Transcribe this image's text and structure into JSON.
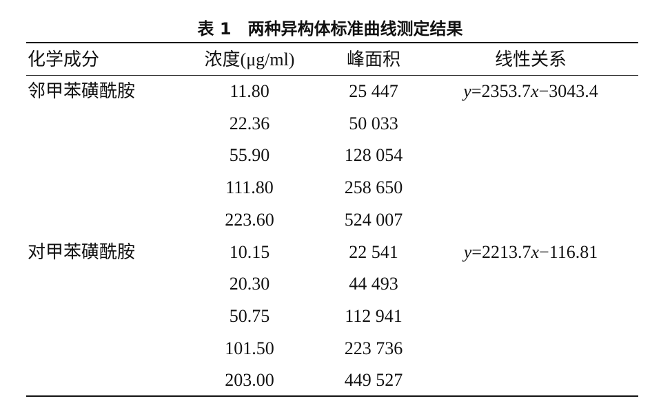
{
  "table": {
    "title": "表 1　两种异构体标准曲线测定结果",
    "header": [
      "化学成分",
      "浓度(μg/ml)",
      "峰面积",
      "线性关系"
    ],
    "groups": [
      {
        "name": "邻甲苯磺酰胺",
        "equation": "y=2353.7x−3043.4",
        "rows": [
          [
            "11.80",
            "25 447"
          ],
          [
            "22.36",
            "50 033"
          ],
          [
            "55.90",
            "128 054"
          ],
          [
            "111.80",
            "258 650"
          ],
          [
            "223.60",
            "524 007"
          ]
        ]
      },
      {
        "name": "对甲苯磺酰胺",
        "equation": "y=2213.7x−116.81",
        "rows": [
          [
            "10.15",
            "22 541"
          ],
          [
            "20.30",
            "44 493"
          ],
          [
            "50.75",
            "112 941"
          ],
          [
            "101.50",
            "223 736"
          ],
          [
            "203.00",
            "449 527"
          ]
        ]
      }
    ]
  }
}
